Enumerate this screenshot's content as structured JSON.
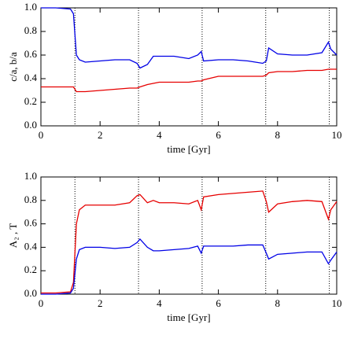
{
  "chart_data": [
    {
      "type": "line",
      "xlabel": "time [Gyr]",
      "ylabel": "c/a, b/a",
      "x": [
        0,
        0.5,
        1,
        1.1,
        1.2,
        1.3,
        1.5,
        2,
        2.5,
        3,
        3.25,
        3.35,
        3.6,
        3.8,
        4,
        4.5,
        5,
        5.3,
        5.42,
        5.5,
        6,
        6.5,
        7,
        7.5,
        7.62,
        7.7,
        8,
        8.5,
        9,
        9.5,
        9.72,
        9.8,
        10
      ],
      "series": [
        {
          "color": "#0000e6",
          "values": [
            1.0,
            1.0,
            0.99,
            0.95,
            0.6,
            0.56,
            0.54,
            0.55,
            0.56,
            0.56,
            0.53,
            0.49,
            0.52,
            0.59,
            0.59,
            0.59,
            0.57,
            0.6,
            0.63,
            0.55,
            0.56,
            0.56,
            0.55,
            0.53,
            0.55,
            0.66,
            0.61,
            0.6,
            0.6,
            0.62,
            0.71,
            0.65,
            0.6
          ]
        },
        {
          "color": "#e60000",
          "values": [
            0.33,
            0.33,
            0.33,
            0.33,
            0.29,
            0.29,
            0.29,
            0.3,
            0.31,
            0.32,
            0.32,
            0.33,
            0.35,
            0.36,
            0.37,
            0.37,
            0.37,
            0.38,
            0.38,
            0.39,
            0.42,
            0.42,
            0.42,
            0.42,
            0.43,
            0.45,
            0.46,
            0.46,
            0.47,
            0.47,
            0.48,
            0.48,
            0.48
          ]
        }
      ],
      "vlines": [
        1.15,
        3.3,
        5.45,
        7.6,
        9.75
      ],
      "xlim": [
        0,
        10
      ],
      "xticks": [
        0,
        2,
        4,
        6,
        8,
        10
      ],
      "ylim": [
        0,
        1
      ],
      "yticks": [
        {
          "value": 0,
          "label": "0.0"
        },
        {
          "value": 0.2,
          "label": "0.2"
        },
        {
          "value": 0.4,
          "label": "0.4"
        },
        {
          "value": 0.6,
          "label": "0.6"
        },
        {
          "value": 0.8,
          "label": "0.8"
        },
        {
          "value": 1,
          "label": "1.0"
        }
      ]
    },
    {
      "type": "line",
      "xlabel": "time [Gyr]",
      "ylabel": "A₂ ,  T",
      "x": [
        0,
        0.5,
        1,
        1.1,
        1.2,
        1.3,
        1.5,
        2,
        2.5,
        3,
        3.25,
        3.35,
        3.6,
        3.8,
        4,
        4.5,
        5,
        5.3,
        5.42,
        5.5,
        6,
        6.5,
        7,
        7.5,
        7.62,
        7.7,
        8,
        8.5,
        9,
        9.5,
        9.72,
        9.8,
        10
      ],
      "series": [
        {
          "color": "#e60000",
          "values": [
            0.01,
            0.01,
            0.02,
            0.1,
            0.6,
            0.72,
            0.76,
            0.76,
            0.76,
            0.78,
            0.84,
            0.85,
            0.78,
            0.8,
            0.78,
            0.78,
            0.77,
            0.8,
            0.72,
            0.83,
            0.85,
            0.86,
            0.87,
            0.88,
            0.79,
            0.7,
            0.77,
            0.79,
            0.8,
            0.79,
            0.64,
            0.72,
            0.79
          ]
        },
        {
          "color": "#0000e6",
          "values": [
            0.0,
            0.0,
            0.01,
            0.05,
            0.3,
            0.38,
            0.4,
            0.4,
            0.39,
            0.4,
            0.44,
            0.47,
            0.4,
            0.37,
            0.37,
            0.38,
            0.39,
            0.41,
            0.35,
            0.41,
            0.41,
            0.41,
            0.42,
            0.42,
            0.35,
            0.3,
            0.34,
            0.35,
            0.36,
            0.36,
            0.26,
            0.29,
            0.36
          ]
        }
      ],
      "vlines": [
        1.15,
        3.3,
        5.45,
        7.6,
        9.75
      ],
      "xlim": [
        0,
        10
      ],
      "xticks": [
        0,
        2,
        4,
        6,
        8,
        10
      ],
      "ylim": [
        0,
        1
      ],
      "yticks": [
        {
          "value": 0,
          "label": "0.0"
        },
        {
          "value": 0.2,
          "label": "0.2"
        },
        {
          "value": 0.4,
          "label": "0.4"
        },
        {
          "value": 0.6,
          "label": "0.6"
        },
        {
          "value": 0.8,
          "label": "0.8"
        },
        {
          "value": 1,
          "label": "1.0"
        }
      ]
    }
  ]
}
